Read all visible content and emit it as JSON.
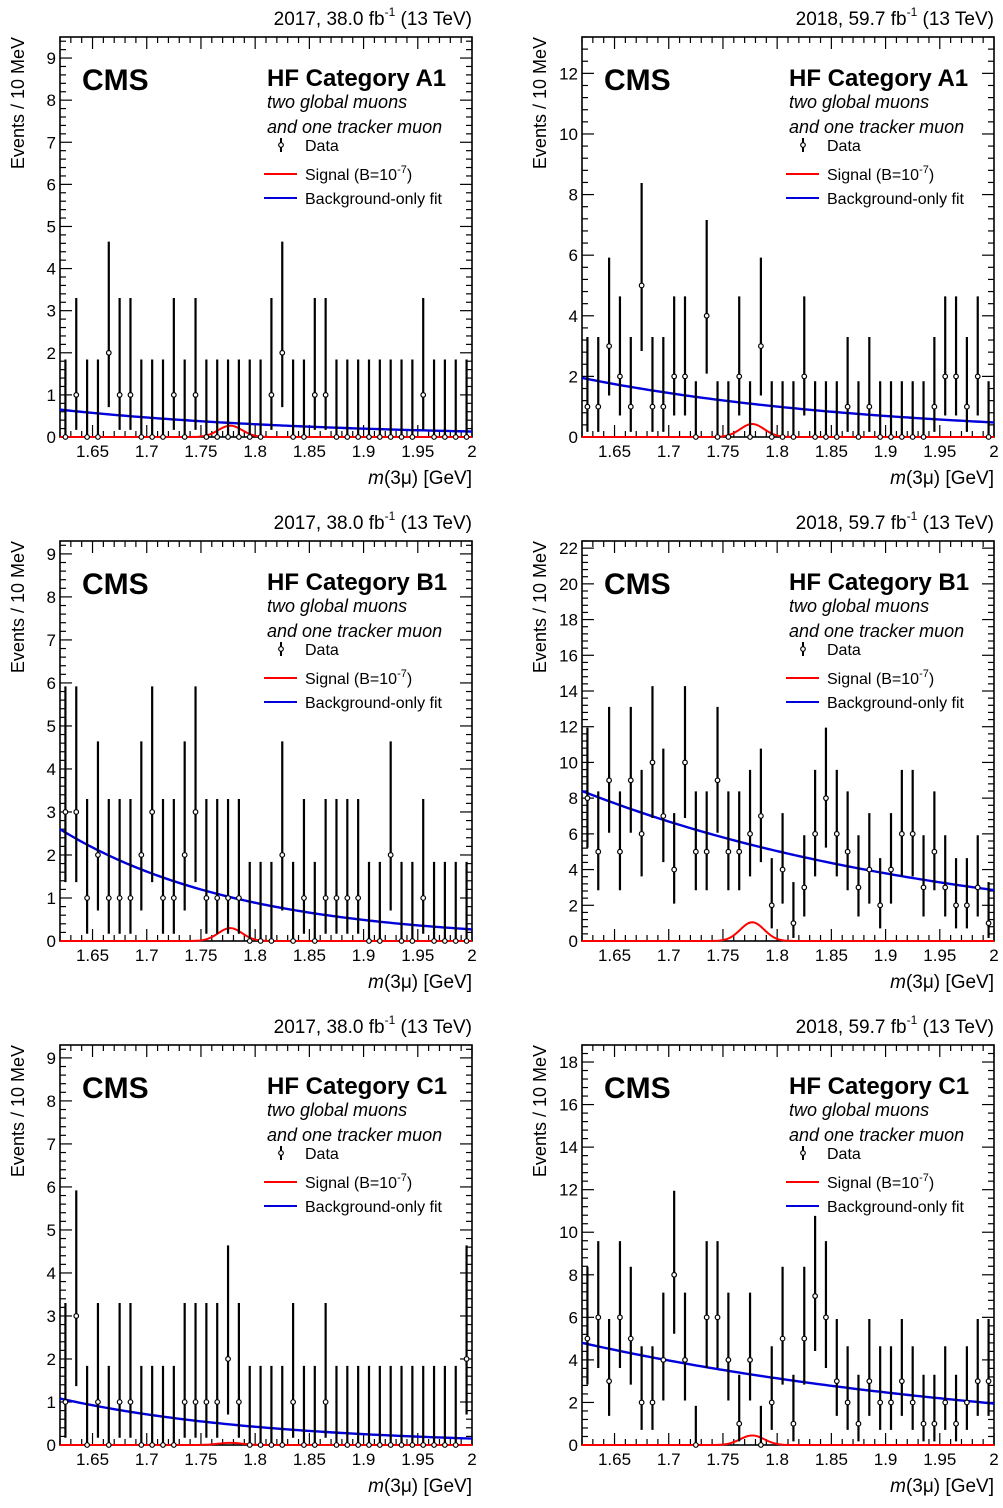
{
  "common": {
    "cms_label": "CMS",
    "subtitle_line1": "two global muons",
    "subtitle_line2": "and one tracker muon",
    "legend": {
      "data": "Data",
      "signal_prefix": "Signal (B=10",
      "signal_exp": "-7",
      "signal_suffix": ")",
      "background": "Background-only fit"
    },
    "xlabel_m": "m",
    "xlabel_rest": "(3μ) [GeV]",
    "ylabel": "Events / 10 MeV",
    "colors": {
      "data": "#000000",
      "signal": "#ff0000",
      "background": "#0000dd"
    }
  },
  "chart_data": [
    {
      "type": "scatter",
      "title_left": "2017, 38.0 fb",
      "title_exp": "-1",
      "title_right": " (13 TeV)",
      "category": "HF Category A1",
      "xlim": [
        1.62,
        2.0
      ],
      "ylim": [
        0,
        9.5
      ],
      "yticks": [
        0,
        1,
        2,
        3,
        4,
        5,
        6,
        7,
        8,
        9
      ],
      "x": [
        1.625,
        1.635,
        1.645,
        1.655,
        1.665,
        1.675,
        1.685,
        1.695,
        1.705,
        1.715,
        1.725,
        1.735,
        1.745,
        1.755,
        1.765,
        1.775,
        1.785,
        1.795,
        1.805,
        1.815,
        1.825,
        1.835,
        1.845,
        1.855,
        1.865,
        1.875,
        1.885,
        1.895,
        1.905,
        1.915,
        1.925,
        1.935,
        1.945,
        1.955,
        1.965,
        1.975,
        1.985,
        1.995
      ],
      "y": [
        0,
        1,
        0,
        0,
        2,
        1,
        1,
        0,
        0,
        0,
        1,
        0,
        1,
        0,
        0,
        0,
        0,
        0,
        0,
        1,
        2,
        0,
        0,
        1,
        1,
        0,
        0,
        0,
        0,
        0,
        0,
        0,
        0,
        1,
        0,
        0,
        0,
        0
      ],
      "background_fit": {
        "at_xmin": 0.65,
        "at_xmax": 0.13
      },
      "signal_peak": 0.27
    },
    {
      "type": "scatter",
      "title_left": "2018, 59.7 fb",
      "title_exp": "-1",
      "title_right": " (13 TeV)",
      "category": "HF Category A1",
      "xlim": [
        1.62,
        2.0
      ],
      "ylim": [
        0,
        13.2
      ],
      "yticks": [
        0,
        2,
        4,
        6,
        8,
        10,
        12
      ],
      "x": [
        1.625,
        1.635,
        1.645,
        1.655,
        1.665,
        1.675,
        1.685,
        1.695,
        1.705,
        1.715,
        1.725,
        1.735,
        1.745,
        1.755,
        1.765,
        1.775,
        1.785,
        1.795,
        1.805,
        1.815,
        1.825,
        1.835,
        1.845,
        1.855,
        1.865,
        1.875,
        1.885,
        1.895,
        1.905,
        1.915,
        1.925,
        1.935,
        1.945,
        1.955,
        1.965,
        1.975,
        1.985,
        1.995
      ],
      "y": [
        1,
        1,
        3,
        2,
        1,
        5,
        1,
        1,
        2,
        2,
        0,
        4,
        0,
        0,
        2,
        0,
        3,
        0,
        0,
        0,
        2,
        0,
        0,
        0,
        1,
        0,
        1,
        0,
        0,
        0,
        0,
        0,
        1,
        2,
        2,
        1,
        2,
        0
      ],
      "background_fit": {
        "at_xmin": 1.95,
        "at_xmax": 0.48
      },
      "signal_peak": 0.43
    },
    {
      "type": "scatter",
      "title_left": "2017, 38.0 fb",
      "title_exp": "-1",
      "title_right": " (13 TeV)",
      "category": "HF Category B1",
      "xlim": [
        1.62,
        2.0
      ],
      "ylim": [
        0,
        9.3
      ],
      "yticks": [
        0,
        1,
        2,
        3,
        4,
        5,
        6,
        7,
        8,
        9
      ],
      "x": [
        1.625,
        1.635,
        1.645,
        1.655,
        1.665,
        1.675,
        1.685,
        1.695,
        1.705,
        1.715,
        1.725,
        1.735,
        1.745,
        1.755,
        1.765,
        1.775,
        1.785,
        1.795,
        1.805,
        1.815,
        1.825,
        1.835,
        1.845,
        1.855,
        1.865,
        1.875,
        1.885,
        1.895,
        1.905,
        1.915,
        1.925,
        1.935,
        1.945,
        1.955,
        1.965,
        1.975,
        1.985,
        1.995
      ],
      "y": [
        3,
        3,
        1,
        2,
        1,
        1,
        1,
        2,
        3,
        1,
        1,
        2,
        3,
        1,
        1,
        1,
        1,
        0,
        0,
        0,
        2,
        0,
        1,
        0,
        1,
        1,
        1,
        1,
        0,
        0,
        2,
        0,
        0,
        1,
        0,
        0,
        0,
        0
      ],
      "background_fit": {
        "at_xmin": 2.6,
        "at_xmax": 0.27
      },
      "signal_peak": 0.3
    },
    {
      "type": "scatter",
      "title_left": "2018, 59.7 fb",
      "title_exp": "-1",
      "title_right": " (13 TeV)",
      "category": "HF Category B1",
      "xlim": [
        1.62,
        2.0
      ],
      "ylim": [
        0,
        22.4
      ],
      "yticks": [
        0,
        2,
        4,
        6,
        8,
        10,
        12,
        14,
        16,
        18,
        20,
        22
      ],
      "x": [
        1.625,
        1.635,
        1.645,
        1.655,
        1.665,
        1.675,
        1.685,
        1.695,
        1.705,
        1.715,
        1.725,
        1.735,
        1.745,
        1.755,
        1.765,
        1.775,
        1.785,
        1.795,
        1.805,
        1.815,
        1.825,
        1.835,
        1.845,
        1.855,
        1.865,
        1.875,
        1.885,
        1.895,
        1.905,
        1.915,
        1.925,
        1.935,
        1.945,
        1.955,
        1.965,
        1.975,
        1.985,
        1.995
      ],
      "y": [
        8,
        5,
        9,
        5,
        9,
        6,
        10,
        7,
        4,
        10,
        5,
        5,
        9,
        5,
        5,
        6,
        7,
        2,
        4,
        1,
        3,
        6,
        8,
        6,
        5,
        3,
        4,
        2,
        4,
        6,
        6,
        3,
        5,
        3,
        2,
        2,
        3,
        1
      ],
      "background_fit": {
        "at_xmin": 8.4,
        "at_xmax": 2.85
      },
      "signal_peak": 1.05
    },
    {
      "type": "scatter",
      "title_left": "2017, 38.0 fb",
      "title_exp": "-1",
      "title_right": " (13 TeV)",
      "category": "HF Category C1",
      "xlim": [
        1.62,
        2.0
      ],
      "ylim": [
        0,
        9.3
      ],
      "yticks": [
        0,
        1,
        2,
        3,
        4,
        5,
        6,
        7,
        8,
        9
      ],
      "x": [
        1.625,
        1.635,
        1.645,
        1.655,
        1.665,
        1.675,
        1.685,
        1.695,
        1.705,
        1.715,
        1.725,
        1.735,
        1.745,
        1.755,
        1.765,
        1.775,
        1.785,
        1.795,
        1.805,
        1.815,
        1.825,
        1.835,
        1.845,
        1.855,
        1.865,
        1.875,
        1.885,
        1.895,
        1.905,
        1.915,
        1.925,
        1.935,
        1.945,
        1.955,
        1.965,
        1.975,
        1.985,
        1.995
      ],
      "y": [
        1,
        3,
        0,
        1,
        0,
        1,
        1,
        0,
        0,
        0,
        0,
        1,
        1,
        1,
        1,
        2,
        1,
        0,
        0,
        0,
        0,
        1,
        0,
        0,
        1,
        0,
        0,
        0,
        0,
        0,
        0,
        0,
        0,
        0,
        0,
        0,
        0,
        2
      ],
      "background_fit": {
        "at_xmin": 1.08,
        "at_xmax": 0.15
      },
      "signal_peak": 0.05
    },
    {
      "type": "scatter",
      "title_left": "2018, 59.7 fb",
      "title_exp": "-1",
      "title_right": " (13 TeV)",
      "category": "HF Category C1",
      "xlim": [
        1.62,
        2.0
      ],
      "ylim": [
        0,
        18.8
      ],
      "yticks": [
        0,
        2,
        4,
        6,
        8,
        10,
        12,
        14,
        16,
        18
      ],
      "x": [
        1.625,
        1.635,
        1.645,
        1.655,
        1.665,
        1.675,
        1.685,
        1.695,
        1.705,
        1.715,
        1.725,
        1.735,
        1.745,
        1.755,
        1.765,
        1.775,
        1.785,
        1.795,
        1.805,
        1.815,
        1.825,
        1.835,
        1.845,
        1.855,
        1.865,
        1.875,
        1.885,
        1.895,
        1.905,
        1.915,
        1.925,
        1.935,
        1.945,
        1.955,
        1.965,
        1.975,
        1.985,
        1.995
      ],
      "y": [
        5,
        6,
        3,
        6,
        5,
        2,
        2,
        4,
        8,
        4,
        0,
        6,
        6,
        4,
        1,
        4,
        0,
        2,
        5,
        1,
        5,
        7,
        6,
        3,
        2,
        1,
        3,
        2,
        2,
        3,
        2,
        1,
        1,
        2,
        1,
        2,
        3,
        3
      ],
      "background_fit": {
        "at_xmin": 4.8,
        "at_xmax": 1.95
      },
      "signal_peak": 0.45
    }
  ]
}
